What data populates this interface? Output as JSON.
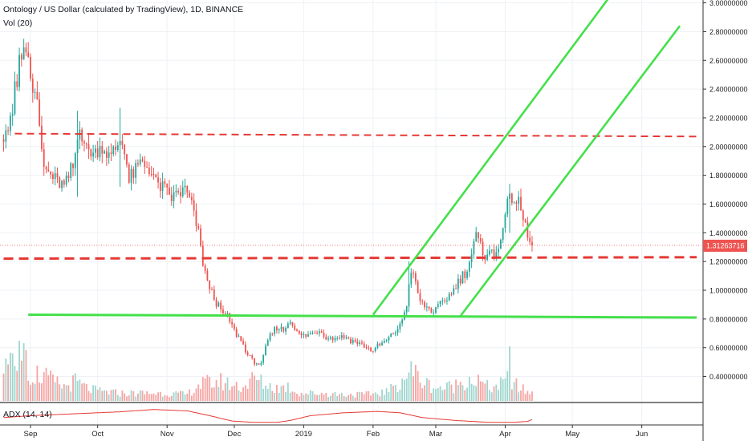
{
  "header": {
    "title": "Ontology / US Dollar (calculated by TradingView), 1D, BINANCE",
    "vol_label": "Vol (20)"
  },
  "adx_label": "ADX (14, 14)",
  "last_price_label": "1.31263716",
  "chart_data": {
    "type": "candlestick",
    "price_axis": {
      "range": [
        0.23,
        3.02
      ],
      "ticks": [
        {
          "value": 3.0,
          "label": "3.00000000"
        },
        {
          "value": 2.8,
          "label": "2.80000000"
        },
        {
          "value": 2.6,
          "label": "2.60000000"
        },
        {
          "value": 2.4,
          "label": "2.40000000"
        },
        {
          "value": 2.2,
          "label": "2.20000000"
        },
        {
          "value": 2.0,
          "label": "2.00000000"
        },
        {
          "value": 1.8,
          "label": "1.80000000"
        },
        {
          "value": 1.6,
          "label": "1.60000000"
        },
        {
          "value": 1.4,
          "label": "1.40000000"
        },
        {
          "value": 1.2,
          "label": "1.20000000"
        },
        {
          "value": 1.0,
          "label": "1.00000000"
        },
        {
          "value": 0.8,
          "label": "0.80000000"
        },
        {
          "value": 0.6,
          "label": "0.60000000"
        },
        {
          "value": 0.4,
          "label": "0.40000000"
        }
      ]
    },
    "time_axis": {
      "ticks": [
        {
          "label": "Sep",
          "day": 0
        },
        {
          "label": "Oct",
          "day": 30
        },
        {
          "label": "Nov",
          "day": 61
        },
        {
          "label": "Dec",
          "day": 91
        },
        {
          "label": "2019",
          "day": 122
        },
        {
          "label": "Feb",
          "day": 153
        },
        {
          "label": "Mar",
          "day": 181
        },
        {
          "label": "Apr",
          "day": 212
        },
        {
          "label": "May",
          "day": 242
        },
        {
          "label": "Jun",
          "day": 273
        }
      ]
    },
    "price_anchors": [
      [
        -12,
        2.05
      ],
      [
        -9,
        2.2
      ],
      [
        -6,
        2.5
      ],
      [
        -3,
        2.75
      ],
      [
        -1,
        2.6
      ],
      [
        1,
        2.45
      ],
      [
        3,
        2.35
      ],
      [
        4,
        2.1
      ],
      [
        6,
        1.85
      ],
      [
        9,
        1.8
      ],
      [
        12,
        1.75
      ],
      [
        15,
        1.72
      ],
      [
        19,
        1.85
      ],
      [
        22,
        2.15
      ],
      [
        25,
        1.98
      ],
      [
        28,
        1.95
      ],
      [
        32,
        2.0
      ],
      [
        36,
        1.92
      ],
      [
        38,
        1.98
      ],
      [
        40,
        2.05
      ],
      [
        42,
        2.0
      ],
      [
        44,
        1.75
      ],
      [
        47,
        1.85
      ],
      [
        50,
        1.88
      ],
      [
        53,
        1.85
      ],
      [
        56,
        1.75
      ],
      [
        60,
        1.7
      ],
      [
        63,
        1.65
      ],
      [
        66,
        1.68
      ],
      [
        69,
        1.7
      ],
      [
        72,
        1.6
      ],
      [
        75,
        1.4
      ],
      [
        77,
        1.2
      ],
      [
        79,
        1.05
      ],
      [
        82,
        0.95
      ],
      [
        85,
        0.85
      ],
      [
        88,
        0.82
      ],
      [
        91,
        0.72
      ],
      [
        94,
        0.65
      ],
      [
        97,
        0.55
      ],
      [
        100,
        0.5
      ],
      [
        103,
        0.48
      ],
      [
        106,
        0.65
      ],
      [
        110,
        0.75
      ],
      [
        113,
        0.72
      ],
      [
        116,
        0.8
      ],
      [
        119,
        0.7
      ],
      [
        122,
        0.68
      ],
      [
        126,
        0.7
      ],
      [
        129,
        0.72
      ],
      [
        132,
        0.68
      ],
      [
        135,
        0.66
      ],
      [
        138,
        0.68
      ],
      [
        141,
        0.67
      ],
      [
        144,
        0.65
      ],
      [
        147,
        0.63
      ],
      [
        150,
        0.6
      ],
      [
        153,
        0.58
      ],
      [
        156,
        0.62
      ],
      [
        159,
        0.65
      ],
      [
        162,
        0.7
      ],
      [
        165,
        0.75
      ],
      [
        168,
        0.9
      ],
      [
        170,
        1.15
      ],
      [
        172,
        1.05
      ],
      [
        174,
        0.92
      ],
      [
        177,
        0.88
      ],
      [
        180,
        0.85
      ],
      [
        183,
        0.9
      ],
      [
        186,
        0.95
      ],
      [
        189,
        1.0
      ],
      [
        192,
        1.08
      ],
      [
        195,
        1.15
      ],
      [
        197,
        1.25
      ],
      [
        199,
        1.38
      ],
      [
        201,
        1.3
      ],
      [
        203,
        1.25
      ],
      [
        205,
        1.28
      ],
      [
        207,
        1.22
      ],
      [
        209,
        1.3
      ],
      [
        211,
        1.45
      ],
      [
        213,
        1.6
      ],
      [
        215,
        1.65
      ],
      [
        217,
        1.62
      ],
      [
        219,
        1.55
      ],
      [
        221,
        1.45
      ],
      [
        222,
        1.38
      ],
      [
        223,
        1.3
      ],
      [
        224,
        1.31
      ]
    ],
    "volume_anchors": [
      [
        -12,
        0.45
      ],
      [
        -8,
        0.55
      ],
      [
        -4,
        0.7
      ],
      [
        0,
        0.45
      ],
      [
        5,
        0.4
      ],
      [
        10,
        0.3
      ],
      [
        15,
        0.22
      ],
      [
        20,
        0.3
      ],
      [
        25,
        0.2
      ],
      [
        30,
        0.15
      ],
      [
        40,
        0.12
      ],
      [
        50,
        0.12
      ],
      [
        60,
        0.12
      ],
      [
        70,
        0.1
      ],
      [
        75,
        0.25
      ],
      [
        80,
        0.28
      ],
      [
        85,
        0.3
      ],
      [
        90,
        0.25
      ],
      [
        95,
        0.22
      ],
      [
        100,
        0.35
      ],
      [
        105,
        0.25
      ],
      [
        110,
        0.2
      ],
      [
        115,
        0.22
      ],
      [
        120,
        0.12
      ],
      [
        130,
        0.12
      ],
      [
        140,
        0.1
      ],
      [
        150,
        0.1
      ],
      [
        160,
        0.15
      ],
      [
        165,
        0.3
      ],
      [
        168,
        0.4
      ],
      [
        170,
        0.5
      ],
      [
        175,
        0.3
      ],
      [
        180,
        0.22
      ],
      [
        185,
        0.2
      ],
      [
        190,
        0.25
      ],
      [
        195,
        0.35
      ],
      [
        200,
        0.3
      ],
      [
        205,
        0.2
      ],
      [
        210,
        0.25
      ],
      [
        214,
        0.35
      ],
      [
        218,
        0.2
      ],
      [
        224,
        0.12
      ]
    ],
    "adx_anchors": [
      [
        -12,
        0.3
      ],
      [
        0,
        0.4
      ],
      [
        20,
        0.5
      ],
      [
        40,
        0.6
      ],
      [
        55,
        0.72
      ],
      [
        70,
        0.65
      ],
      [
        80,
        0.4
      ],
      [
        90,
        0.12
      ],
      [
        100,
        0.05
      ],
      [
        110,
        0.05
      ],
      [
        116,
        0.15
      ],
      [
        125,
        0.4
      ],
      [
        140,
        0.55
      ],
      [
        155,
        0.62
      ],
      [
        165,
        0.55
      ],
      [
        175,
        0.3
      ],
      [
        190,
        0.15
      ],
      [
        205,
        0.05
      ],
      [
        215,
        0.05
      ],
      [
        222,
        0.1
      ],
      [
        224,
        0.2
      ]
    ],
    "highlight_candles": [
      {
        "day": 21,
        "high": 2.25,
        "low": 1.65
      },
      {
        "day": 40,
        "high": 2.27,
        "low": 1.72
      },
      {
        "day": 169,
        "high": 1.2,
        "low": 0.85
      },
      {
        "day": 214,
        "high": 1.74,
        "low": 1.4
      }
    ],
    "horizontal_lines": [
      {
        "price": 2.09,
        "price_end": 2.07,
        "from_day": -7,
        "style": "dashed",
        "color": "#e53935",
        "width": 2
      },
      {
        "price": 1.22,
        "price_end": 1.23,
        "from_day": -12,
        "style": "dashed",
        "color": "#e53935",
        "width": 3
      },
      {
        "price": 0.83,
        "price_end": 0.81,
        "from_day": -1,
        "style": "solid",
        "color": "#44e04a",
        "width": 3
      }
    ],
    "trend_lines": [
      {
        "from_day": 153,
        "from_price": 0.83,
        "to_day": 259,
        "to_price": 3.05,
        "color": "#44e04a"
      },
      {
        "from_day": 192,
        "from_price": 0.82,
        "to_day": 290,
        "to_price": 2.84,
        "color": "#44e04a"
      }
    ],
    "last_price": 1.31263716,
    "colors": {
      "up": "#26a69a",
      "down": "#ef5350",
      "volume_up": "#9fd6cf",
      "volume_down": "#f6a5a3",
      "adx": "#e53935",
      "grid": "#eef1f5",
      "axis_text": "#222222",
      "price_tag": "#ef5350"
    }
  }
}
